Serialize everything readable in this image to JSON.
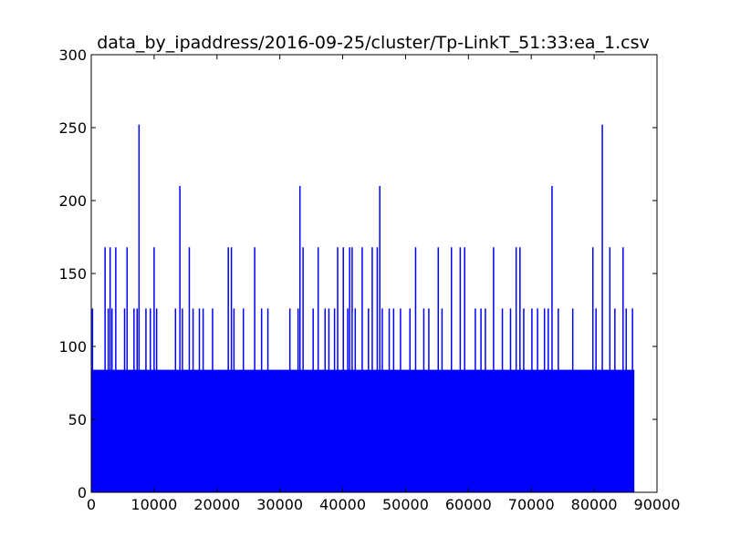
{
  "chart_data": {
    "type": "line",
    "title": "data_by_ipaddress/2016-09-25/cluster/Tp-LinkT_51:33:ea_1.csv",
    "xlabel": "",
    "ylabel": "",
    "xlim": [
      0,
      90000
    ],
    "ylim": [
      0,
      300
    ],
    "x_ticks": [
      0,
      10000,
      20000,
      30000,
      40000,
      50000,
      60000,
      70000,
      80000,
      90000
    ],
    "x_tick_labels": [
      "0",
      "10000",
      "20000",
      "30000",
      "40000",
      "50000",
      "60000",
      "70000",
      "80000",
      "90000"
    ],
    "y_ticks": [
      0,
      50,
      100,
      150,
      200,
      250,
      300
    ],
    "y_tick_labels": [
      "0",
      "50",
      "100",
      "150",
      "200",
      "250",
      "300"
    ],
    "grid": false,
    "legend": "none",
    "series_color": "#0000ff",
    "baseline_level": 84,
    "x_range": [
      0,
      86400
    ],
    "peaks": [
      {
        "x": 200,
        "y": 126
      },
      {
        "x": 1400,
        "y": 84
      },
      {
        "x": 2200,
        "y": 168
      },
      {
        "x": 2700,
        "y": 126
      },
      {
        "x": 3000,
        "y": 168
      },
      {
        "x": 3300,
        "y": 126
      },
      {
        "x": 3900,
        "y": 168
      },
      {
        "x": 5300,
        "y": 126
      },
      {
        "x": 5700,
        "y": 168
      },
      {
        "x": 6800,
        "y": 126
      },
      {
        "x": 7300,
        "y": 126
      },
      {
        "x": 7600,
        "y": 252
      },
      {
        "x": 8700,
        "y": 126
      },
      {
        "x": 9400,
        "y": 126
      },
      {
        "x": 10000,
        "y": 168
      },
      {
        "x": 10400,
        "y": 126
      },
      {
        "x": 13400,
        "y": 126
      },
      {
        "x": 14100,
        "y": 210
      },
      {
        "x": 14500,
        "y": 126
      },
      {
        "x": 15600,
        "y": 168
      },
      {
        "x": 16200,
        "y": 126
      },
      {
        "x": 17200,
        "y": 126
      },
      {
        "x": 17800,
        "y": 126
      },
      {
        "x": 19300,
        "y": 126
      },
      {
        "x": 21800,
        "y": 168
      },
      {
        "x": 22300,
        "y": 168
      },
      {
        "x": 22700,
        "y": 126
      },
      {
        "x": 24200,
        "y": 126
      },
      {
        "x": 26000,
        "y": 168
      },
      {
        "x": 27100,
        "y": 126
      },
      {
        "x": 28100,
        "y": 126
      },
      {
        "x": 31600,
        "y": 126
      },
      {
        "x": 32900,
        "y": 126
      },
      {
        "x": 33200,
        "y": 210
      },
      {
        "x": 33700,
        "y": 168
      },
      {
        "x": 35300,
        "y": 126
      },
      {
        "x": 36100,
        "y": 168
      },
      {
        "x": 37200,
        "y": 126
      },
      {
        "x": 37800,
        "y": 126
      },
      {
        "x": 38700,
        "y": 126
      },
      {
        "x": 39200,
        "y": 168
      },
      {
        "x": 40100,
        "y": 168
      },
      {
        "x": 40800,
        "y": 126
      },
      {
        "x": 41100,
        "y": 168
      },
      {
        "x": 41500,
        "y": 168
      },
      {
        "x": 42000,
        "y": 126
      },
      {
        "x": 43100,
        "y": 168
      },
      {
        "x": 44100,
        "y": 126
      },
      {
        "x": 44700,
        "y": 168
      },
      {
        "x": 45500,
        "y": 168
      },
      {
        "x": 45900,
        "y": 210
      },
      {
        "x": 46300,
        "y": 126
      },
      {
        "x": 47400,
        "y": 126
      },
      {
        "x": 48100,
        "y": 126
      },
      {
        "x": 49200,
        "y": 126
      },
      {
        "x": 50700,
        "y": 126
      },
      {
        "x": 51600,
        "y": 168
      },
      {
        "x": 52900,
        "y": 126
      },
      {
        "x": 53700,
        "y": 126
      },
      {
        "x": 55200,
        "y": 168
      },
      {
        "x": 55800,
        "y": 126
      },
      {
        "x": 57300,
        "y": 168
      },
      {
        "x": 58700,
        "y": 168
      },
      {
        "x": 59400,
        "y": 168
      },
      {
        "x": 61100,
        "y": 126
      },
      {
        "x": 62000,
        "y": 126
      },
      {
        "x": 62700,
        "y": 126
      },
      {
        "x": 64000,
        "y": 168
      },
      {
        "x": 65400,
        "y": 126
      },
      {
        "x": 66700,
        "y": 126
      },
      {
        "x": 67600,
        "y": 168
      },
      {
        "x": 68200,
        "y": 168
      },
      {
        "x": 68800,
        "y": 126
      },
      {
        "x": 70100,
        "y": 126
      },
      {
        "x": 71000,
        "y": 126
      },
      {
        "x": 72100,
        "y": 126
      },
      {
        "x": 72700,
        "y": 126
      },
      {
        "x": 73300,
        "y": 210
      },
      {
        "x": 74300,
        "y": 126
      },
      {
        "x": 76600,
        "y": 126
      },
      {
        "x": 79800,
        "y": 168
      },
      {
        "x": 80300,
        "y": 126
      },
      {
        "x": 81300,
        "y": 252
      },
      {
        "x": 82500,
        "y": 168
      },
      {
        "x": 83300,
        "y": 126
      },
      {
        "x": 84600,
        "y": 168
      },
      {
        "x": 85100,
        "y": 126
      },
      {
        "x": 86100,
        "y": 126
      }
    ]
  }
}
